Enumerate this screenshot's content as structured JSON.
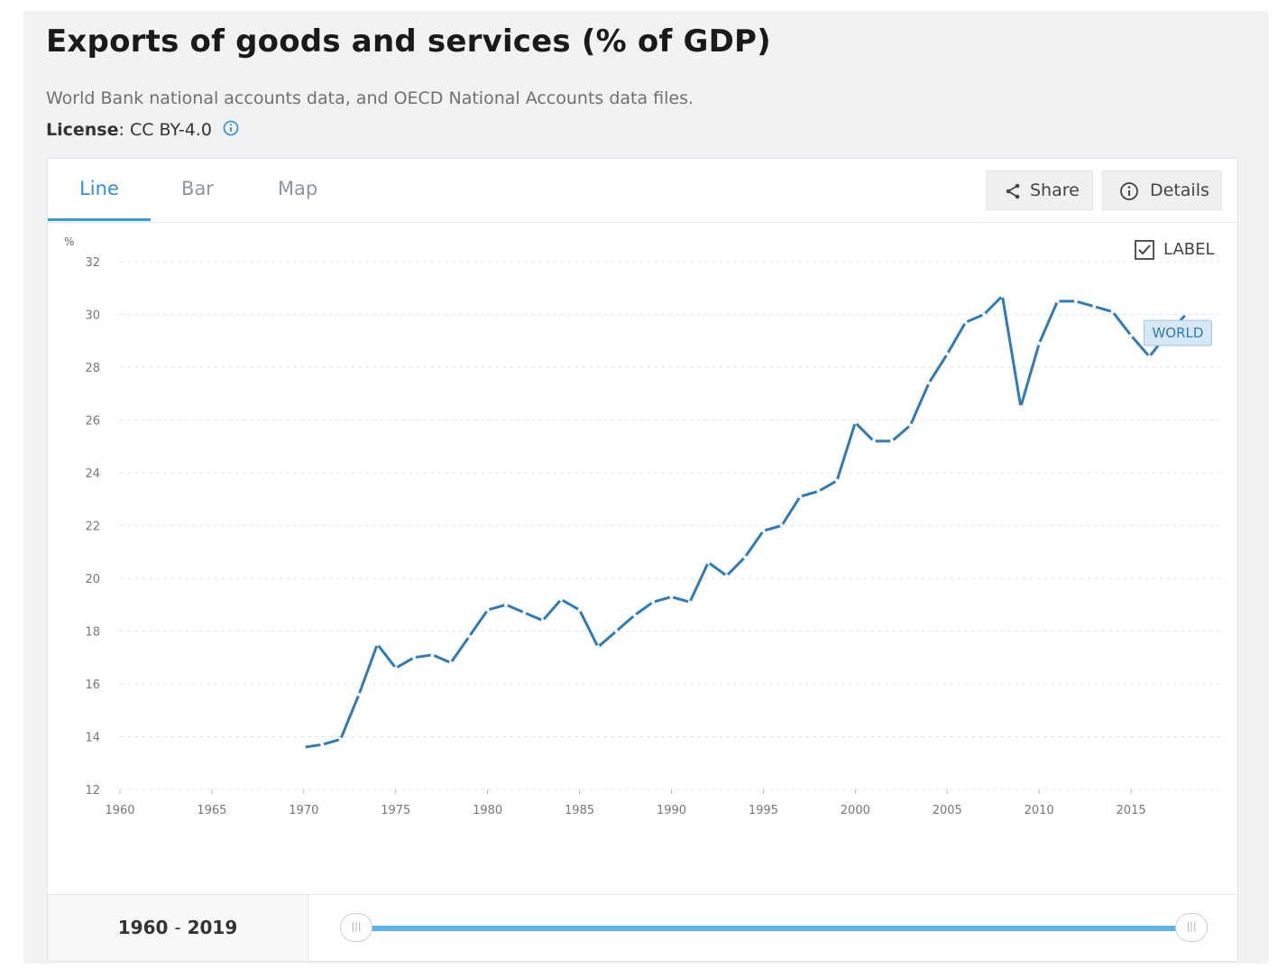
{
  "header": {
    "title": "Exports of goods and services (% of GDP)",
    "source": "World Bank national accounts data, and OECD National Accounts data files.",
    "license_label": "License",
    "license_value": ": CC BY-4.0"
  },
  "tabs": [
    {
      "label": "Line",
      "active": true
    },
    {
      "label": "Bar",
      "active": false
    },
    {
      "label": "Map",
      "active": false
    }
  ],
  "toolbar": {
    "share_label": "Share",
    "details_label": "Details"
  },
  "label_toggle": {
    "text": "LABEL",
    "checked": true
  },
  "colors": {
    "accent": "#3a9ade",
    "line": "#2e7bb8",
    "grid": "#dfe3e8"
  },
  "footer": {
    "range_start": "1960",
    "range_sep": "-",
    "range_end": "2019"
  },
  "chart_data": {
    "type": "line",
    "ylabel": "%",
    "xlim": [
      1960,
      2020
    ],
    "ylim": [
      12,
      32
    ],
    "x_ticks": [
      1960,
      1965,
      1970,
      1975,
      1980,
      1985,
      1990,
      1995,
      2000,
      2005,
      2010,
      2015
    ],
    "y_ticks": [
      12,
      14,
      16,
      18,
      20,
      22,
      24,
      26,
      28,
      30,
      32
    ],
    "grid": true,
    "series": [
      {
        "name": "WORLD",
        "x": [
          1970,
          1971,
          1972,
          1973,
          1974,
          1975,
          1976,
          1977,
          1978,
          1979,
          1980,
          1981,
          1982,
          1983,
          1984,
          1985,
          1986,
          1987,
          1988,
          1989,
          1990,
          1991,
          1992,
          1993,
          1994,
          1995,
          1996,
          1997,
          1998,
          1999,
          2000,
          2001,
          2002,
          2003,
          2004,
          2005,
          2006,
          2007,
          2008,
          2009,
          2010,
          2011,
          2012,
          2013,
          2014,
          2015,
          2016,
          2017,
          2018
        ],
        "values": [
          13.6,
          13.7,
          13.9,
          15.6,
          17.5,
          16.6,
          17.0,
          17.1,
          16.8,
          17.8,
          18.8,
          19.0,
          18.7,
          18.4,
          19.2,
          18.8,
          17.4,
          18.0,
          18.6,
          19.1,
          19.3,
          19.1,
          20.6,
          20.1,
          20.8,
          21.8,
          22.0,
          23.1,
          23.3,
          23.7,
          25.9,
          25.2,
          25.2,
          25.8,
          27.4,
          28.5,
          29.7,
          30.0,
          30.7,
          26.5,
          28.9,
          30.5,
          30.5,
          30.3,
          30.1,
          29.2,
          28.4,
          29.3,
          30.0
        ]
      }
    ]
  }
}
